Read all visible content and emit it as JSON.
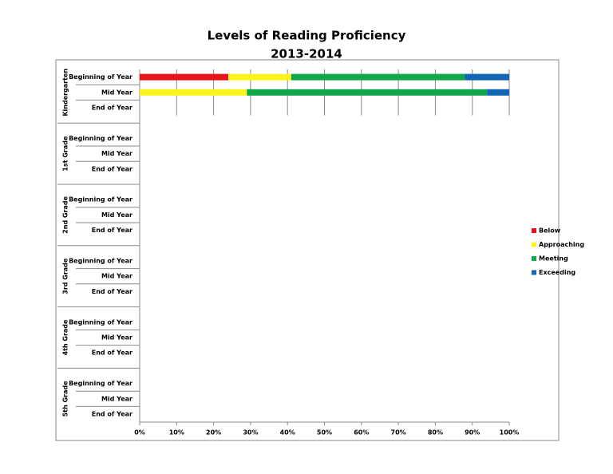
{
  "chart_data": {
    "type": "stacked-bar-horizontal",
    "title": "Levels of Reading Proficiency",
    "subtitle": "2013-2014",
    "groups": [
      "Kindergarten",
      "1st Grade",
      "2nd Grade",
      "3rd Grade",
      "4th Grade",
      "5th Grade"
    ],
    "categories": [
      "Beginning of Year",
      "Mid Year",
      "End of Year",
      "Beginning of Year",
      "Mid Year",
      "End of Year",
      "Beginning of Year",
      "Mid Year",
      "End of Year",
      "Beginning of Year",
      "Mid Year",
      "End of Year",
      "Beginning of Year",
      "Mid Year",
      "End of Year",
      "Beginning of Year",
      "Mid Year",
      "End of Year"
    ],
    "series": [
      {
        "name": "Below",
        "color": "#e8141c",
        "values": [
          24,
          0,
          null,
          null,
          null,
          null,
          null,
          null,
          null,
          null,
          null,
          null,
          null,
          null,
          null,
          null,
          null,
          null
        ]
      },
      {
        "name": "Approaching",
        "color": "#fdf31c",
        "values": [
          17,
          29,
          null,
          null,
          null,
          null,
          null,
          null,
          null,
          null,
          null,
          null,
          null,
          null,
          null,
          null,
          null,
          null
        ]
      },
      {
        "name": "Meeting",
        "color": "#10a64a",
        "values": [
          47,
          65,
          null,
          null,
          null,
          null,
          null,
          null,
          null,
          null,
          null,
          null,
          null,
          null,
          null,
          null,
          null,
          null
        ]
      },
      {
        "name": "Exceeding",
        "color": "#1366b4",
        "values": [
          12,
          6,
          null,
          null,
          null,
          null,
          null,
          null,
          null,
          null,
          null,
          null,
          null,
          null,
          null,
          null,
          null,
          null
        ]
      }
    ],
    "xlim": [
      0,
      100
    ],
    "xticks": [
      {
        "value": 0,
        "label": "0%"
      },
      {
        "value": 10,
        "label": "10%"
      },
      {
        "value": 20,
        "label": "20%"
      },
      {
        "value": 30,
        "label": "30%"
      },
      {
        "value": 40,
        "label": "40%"
      },
      {
        "value": 50,
        "label": "50%"
      },
      {
        "value": 60,
        "label": "60%"
      },
      {
        "value": 70,
        "label": "70%"
      },
      {
        "value": 80,
        "label": "80%"
      },
      {
        "value": 90,
        "label": "90%"
      },
      {
        "value": 100,
        "label": "100%"
      }
    ],
    "grid": true,
    "legend": "right"
  }
}
